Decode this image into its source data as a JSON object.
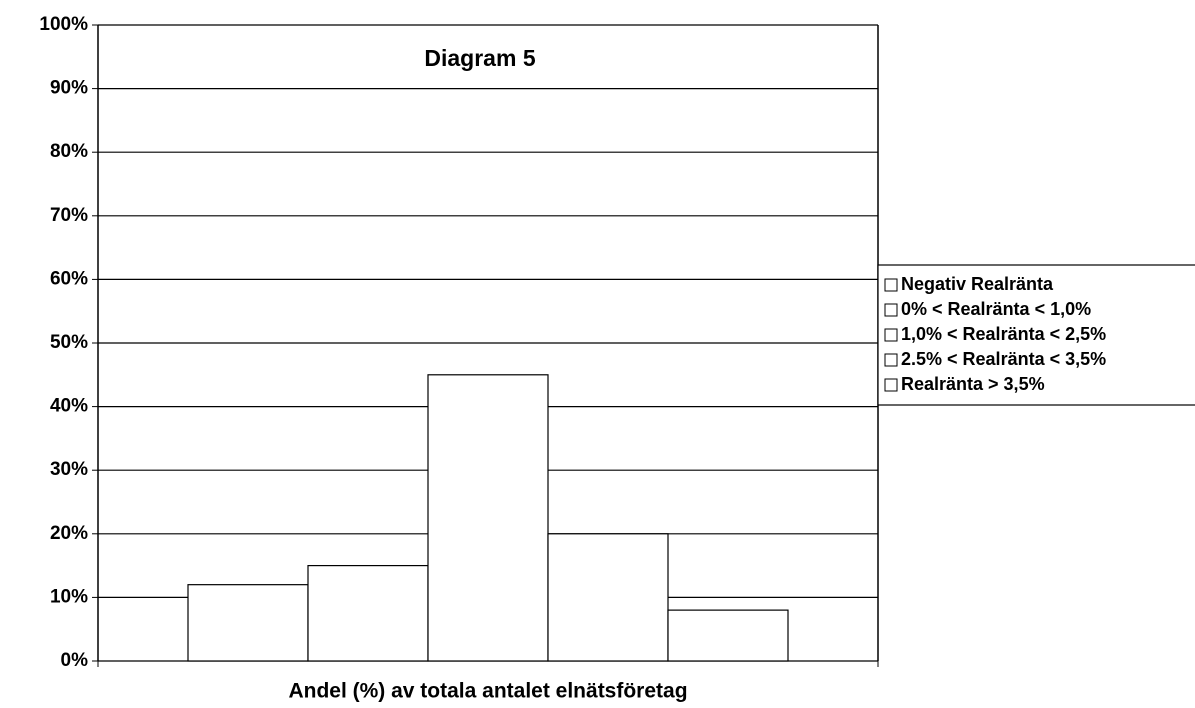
{
  "chart_data": {
    "type": "bar",
    "title": "Diagram 5",
    "xlabel": "Andel (%) av totala antalet elnätsföretag",
    "categories": [
      null
    ],
    "series": [
      {
        "name": "Negativ Realränta",
        "color": "#ffffff",
        "values": [
          12
        ]
      },
      {
        "name": "0% < Realränta < 1,0%",
        "color": "#ffffff",
        "values": [
          15
        ]
      },
      {
        "name": "1,0% < Realränta < 2,5%",
        "color": "#ffffff",
        "values": [
          45
        ]
      },
      {
        "name": "2.5% < Realränta < 3,5%",
        "color": "#ffffff",
        "values": [
          20
        ]
      },
      {
        "name": "Realränta > 3,5%",
        "color": "#ffffff",
        "values": [
          8
        ]
      }
    ],
    "ylim": [
      0,
      100
    ],
    "yticks": [
      {
        "value": 0,
        "label": "0%"
      },
      {
        "value": 10,
        "label": "10%"
      },
      {
        "value": 20,
        "label": "20%"
      },
      {
        "value": 30,
        "label": "30%"
      },
      {
        "value": 40,
        "label": "40%"
      },
      {
        "value": 50,
        "label": "50%"
      },
      {
        "value": 60,
        "label": "60%"
      },
      {
        "value": 70,
        "label": "70%"
      },
      {
        "value": 80,
        "label": "80%"
      },
      {
        "value": 90,
        "label": "90%"
      },
      {
        "value": 100,
        "label": "100%"
      }
    ],
    "grid": true,
    "legend": "right"
  }
}
